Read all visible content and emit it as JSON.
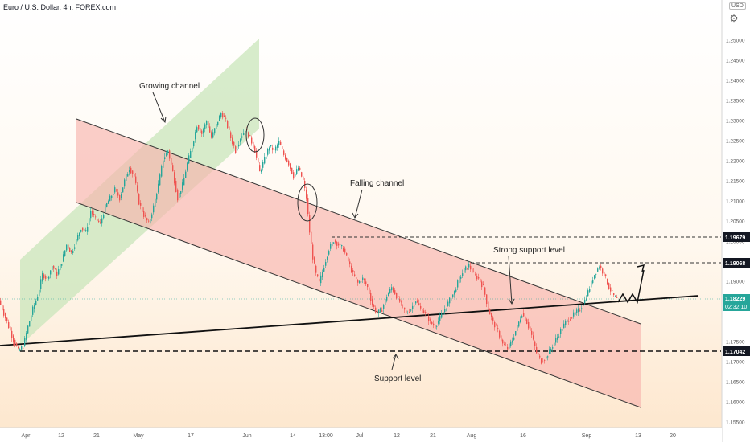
{
  "header": {
    "title": "Euro / U.S. Dollar, 4h, FOREX.com",
    "currency": "USD",
    "settings_icon": "settings-icon"
  },
  "chart_data": {
    "type": "line",
    "title": "Euro / U.S. Dollar, 4h, FOREX.com",
    "xlabel": "",
    "ylabel": "",
    "ylim": [
      1.1535,
      1.2565
    ],
    "x_tick_labels": [
      "Apr",
      "12",
      "21",
      "May",
      "17",
      "Jun",
      "14",
      "13:00",
      "Jul",
      "12",
      "21",
      "Aug",
      "16",
      "Sep",
      "13",
      "20"
    ],
    "y_ticks": [
      "1.25000",
      "1.24500",
      "1.24000",
      "1.23500",
      "1.23000",
      "1.22500",
      "1.22000",
      "1.21500",
      "1.21000",
      "1.20500",
      "1.20000",
      "1.19500",
      "1.19000",
      "1.18500",
      "1.17500",
      "1.17000",
      "1.16500",
      "1.16000",
      "1.15500"
    ],
    "y_tick_values": [
      1.25,
      1.245,
      1.24,
      1.235,
      1.23,
      1.225,
      1.22,
      1.215,
      1.21,
      1.205,
      1.2,
      1.195,
      1.19,
      1.185,
      1.175,
      1.17,
      1.165,
      1.16,
      1.155
    ],
    "price_labels": [
      {
        "text": "1.19679",
        "value": 1.19679,
        "style": "dark"
      },
      {
        "text": "1.19068",
        "value": 1.19068,
        "style": "dark"
      },
      {
        "text": "1.18229",
        "value": 1.18229,
        "style": "teal",
        "sub": "02:32:10"
      },
      {
        "text": "1.17042",
        "value": 1.17042,
        "style": "dark"
      }
    ],
    "annotations": [
      "Growing channel",
      "Falling channel",
      "Strong support level",
      "Support level"
    ],
    "price_points": [
      [
        0,
        1.182
      ],
      [
        6,
        1.179
      ],
      [
        12,
        1.176
      ],
      [
        18,
        1.173
      ],
      [
        24,
        1.1705
      ],
      [
        30,
        1.1715
      ],
      [
        36,
        1.176
      ],
      [
        42,
        1.18
      ],
      [
        48,
        1.183
      ],
      [
        54,
        1.188
      ],
      [
        60,
        1.187
      ],
      [
        66,
        1.19
      ],
      [
        72,
        1.188
      ],
      [
        78,
        1.191
      ],
      [
        84,
        1.195
      ],
      [
        90,
        1.193
      ],
      [
        96,
        1.196
      ],
      [
        102,
        1.199
      ],
      [
        108,
        1.198
      ],
      [
        114,
        1.203
      ],
      [
        120,
        1.201
      ],
      [
        126,
        1.2
      ],
      [
        132,
        1.204
      ],
      [
        138,
        1.206
      ],
      [
        144,
        1.208
      ],
      [
        150,
        1.206
      ],
      [
        156,
        1.21
      ],
      [
        162,
        1.213
      ],
      [
        168,
        1.211
      ],
      [
        174,
        1.205
      ],
      [
        180,
        1.202
      ],
      [
        186,
        1.2
      ],
      [
        192,
        1.204
      ],
      [
        198,
        1.209
      ],
      [
        204,
        1.215
      ],
      [
        210,
        1.217
      ],
      [
        216,
        1.212
      ],
      [
        222,
        1.206
      ],
      [
        228,
        1.209
      ],
      [
        234,
        1.214
      ],
      [
        240,
        1.218
      ],
      [
        246,
        1.223
      ],
      [
        252,
        1.221
      ],
      [
        258,
        1.224
      ],
      [
        264,
        1.22
      ],
      [
        270,
        1.223
      ],
      [
        276,
        1.226
      ],
      [
        282,
        1.224
      ],
      [
        288,
        1.22
      ],
      [
        294,
        1.217
      ],
      [
        300,
        1.22
      ],
      [
        306,
        1.222
      ],
      [
        312,
        1.22
      ],
      [
        318,
        1.217
      ],
      [
        324,
        1.212
      ],
      [
        330,
        1.215
      ],
      [
        336,
        1.218
      ],
      [
        342,
        1.217
      ],
      [
        348,
        1.219
      ],
      [
        354,
        1.216
      ],
      [
        360,
        1.214
      ],
      [
        366,
        1.211
      ],
      [
        372,
        1.213
      ],
      [
        378,
        1.21
      ],
      [
        382,
        1.206
      ],
      [
        386,
        1.198
      ],
      [
        390,
        1.192
      ],
      [
        394,
        1.188
      ],
      [
        398,
        1.186
      ],
      [
        404,
        1.19
      ],
      [
        410,
        1.194
      ],
      [
        416,
        1.196
      ],
      [
        422,
        1.195
      ],
      [
        428,
        1.194
      ],
      [
        434,
        1.191
      ],
      [
        440,
        1.188
      ],
      [
        446,
        1.186
      ],
      [
        452,
        1.187
      ],
      [
        458,
        1.185
      ],
      [
        464,
        1.181
      ],
      [
        470,
        1.179
      ],
      [
        476,
        1.18
      ],
      [
        482,
        1.183
      ],
      [
        488,
        1.185
      ],
      [
        494,
        1.183
      ],
      [
        500,
        1.181
      ],
      [
        506,
        1.179
      ],
      [
        512,
        1.18
      ],
      [
        518,
        1.182
      ],
      [
        524,
        1.18
      ],
      [
        530,
        1.179
      ],
      [
        536,
        1.177
      ],
      [
        542,
        1.176
      ],
      [
        548,
        1.178
      ],
      [
        554,
        1.18
      ],
      [
        560,
        1.182
      ],
      [
        566,
        1.184
      ],
      [
        572,
        1.187
      ],
      [
        578,
        1.189
      ],
      [
        584,
        1.19
      ],
      [
        590,
        1.188
      ],
      [
        596,
        1.187
      ],
      [
        602,
        1.185
      ],
      [
        608,
        1.18
      ],
      [
        614,
        1.177
      ],
      [
        620,
        1.175
      ],
      [
        626,
        1.172
      ],
      [
        632,
        1.171
      ],
      [
        638,
        1.173
      ],
      [
        644,
        1.176
      ],
      [
        650,
        1.179
      ],
      [
        656,
        1.177
      ],
      [
        662,
        1.174
      ],
      [
        668,
        1.17
      ],
      [
        674,
        1.168
      ],
      [
        680,
        1.169
      ],
      [
        686,
        1.171
      ],
      [
        692,
        1.173
      ],
      [
        698,
        1.175
      ],
      [
        704,
        1.177
      ],
      [
        710,
        1.178
      ],
      [
        716,
        1.179
      ],
      [
        722,
        1.18
      ],
      [
        728,
        1.182
      ],
      [
        734,
        1.185
      ],
      [
        740,
        1.188
      ],
      [
        746,
        1.19
      ],
      [
        752,
        1.188
      ],
      [
        758,
        1.185
      ],
      [
        764,
        1.183
      ],
      [
        768,
        1.1823
      ]
    ]
  }
}
